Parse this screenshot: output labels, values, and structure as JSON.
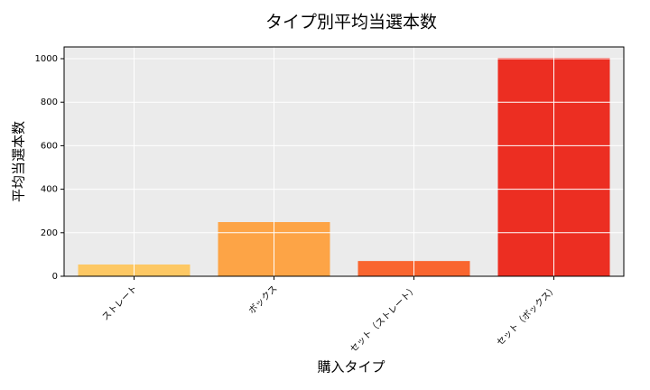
{
  "chart_data": {
    "type": "bar",
    "title": "タイプ別平均当選本数",
    "x_label": "購入タイプ",
    "y_label": "平均当選本数",
    "categories": [
      "ストレート",
      "ボックス",
      "セット（ストレート）",
      "セット（ボックス）"
    ],
    "values": [
      54,
      249,
      70,
      1004
    ],
    "colors": [
      "#fdc864",
      "#fda446",
      "#f9652f",
      "#ec2e22"
    ],
    "ylim": [
      0,
      1054
    ],
    "yticks": [
      0,
      200,
      400,
      600,
      800,
      1000
    ],
    "grid": true
  }
}
